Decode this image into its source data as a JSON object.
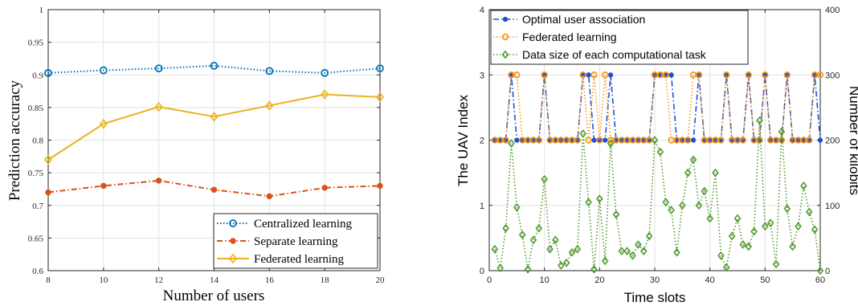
{
  "chart_data": [
    {
      "type": "line",
      "xlabel": "Number of users",
      "ylabel": "Prediction accuracy",
      "xlim": [
        8,
        20
      ],
      "ylim": [
        0.6,
        1
      ],
      "xticks": [
        8,
        10,
        12,
        14,
        16,
        18,
        20
      ],
      "xtick_labels": [
        "8",
        "10",
        "12",
        "14",
        "16",
        "18",
        "20"
      ],
      "yticks": [
        0.6,
        0.65,
        0.7,
        0.75,
        0.8,
        0.85,
        0.9,
        0.95,
        1
      ],
      "ytick_labels": [
        "0.6",
        "0.65",
        "0.7",
        "0.75",
        "0.8",
        "0.85",
        "0.9",
        "0.95",
        "1"
      ],
      "grid": true,
      "legend_position": "bottom-right",
      "x": [
        8,
        10,
        12,
        14,
        16,
        18,
        20
      ],
      "series": [
        {
          "name": "Centralized learning",
          "values": [
            0.903,
            0.907,
            0.91,
            0.914,
            0.906,
            0.903,
            0.91
          ],
          "color": "#0072BD",
          "marker": "circle",
          "dash": "dotted"
        },
        {
          "name": "Separate learning",
          "values": [
            0.72,
            0.73,
            0.738,
            0.724,
            0.714,
            0.727,
            0.73
          ],
          "color": "#D95319",
          "marker": "dot",
          "dash": "dashdot"
        },
        {
          "name": "Federated learning",
          "values": [
            0.77,
            0.825,
            0.851,
            0.836,
            0.853,
            0.87,
            0.866
          ],
          "color": "#EDB120",
          "marker": "diamond",
          "dash": "solid"
        }
      ]
    },
    {
      "type": "line",
      "xlabel": "Time slots",
      "ylabel": "The UAV Index",
      "ylabel_right": "Number of kilobits",
      "xlim": [
        0,
        60
      ],
      "ylim": [
        0,
        4
      ],
      "ylim_right": [
        0,
        400
      ],
      "xticks": [
        0,
        10,
        20,
        30,
        40,
        50,
        60
      ],
      "xtick_labels": [
        "0",
        "10",
        "20",
        "30",
        "40",
        "50",
        "60"
      ],
      "yticks": [
        0,
        1,
        2,
        3,
        4
      ],
      "ytick_labels": [
        "0",
        "1",
        "2",
        "3",
        "4"
      ],
      "yticks_right": [
        0,
        100,
        200,
        300,
        400
      ],
      "ytick_labels_right": [
        "0",
        "100",
        "200",
        "300",
        "400"
      ],
      "grid": true,
      "legend_position": "top-left",
      "x": [
        1,
        2,
        3,
        4,
        5,
        6,
        7,
        8,
        9,
        10,
        11,
        12,
        13,
        14,
        15,
        16,
        17,
        18,
        19,
        20,
        21,
        22,
        23,
        24,
        25,
        26,
        27,
        28,
        29,
        30,
        31,
        32,
        33,
        34,
        35,
        36,
        37,
        38,
        39,
        40,
        41,
        42,
        43,
        44,
        45,
        46,
        47,
        48,
        49,
        50,
        51,
        52,
        53,
        54,
        55,
        56,
        57,
        58,
        59,
        60
      ],
      "series": [
        {
          "name": "Optimal user association",
          "axis": "left",
          "color": "#1F4FD8",
          "marker": "dot",
          "dash": "dashdot",
          "values": [
            2,
            2,
            2,
            3,
            2,
            2,
            2,
            2,
            2,
            3,
            2,
            2,
            2,
            2,
            2,
            2,
            3,
            3,
            2,
            2,
            2,
            3,
            2,
            2,
            2,
            2,
            2,
            2,
            2,
            3,
            3,
            3,
            3,
            2,
            2,
            2,
            2,
            3,
            2,
            2,
            2,
            2,
            3,
            2,
            2,
            2,
            3,
            2,
            2,
            3,
            2,
            2,
            2,
            3,
            2,
            2,
            2,
            2,
            3,
            2
          ]
        },
        {
          "name": "Federated learning",
          "axis": "left",
          "color": "#F59A1B",
          "marker": "circle",
          "dash": "dotted",
          "values": [
            2,
            2,
            2,
            3,
            3,
            2,
            2,
            2,
            2,
            3,
            2,
            2,
            2,
            2,
            2,
            2,
            3,
            2,
            3,
            2,
            3,
            2,
            2,
            2,
            2,
            2,
            2,
            2,
            2,
            3,
            3,
            3,
            2,
            2,
            2,
            2,
            3,
            3,
            2,
            2,
            2,
            2,
            3,
            2,
            2,
            2,
            3,
            2,
            2,
            3,
            2,
            2,
            2,
            3,
            2,
            2,
            2,
            2,
            3,
            3
          ]
        },
        {
          "name": "Data size of each computational task",
          "axis": "right",
          "color": "#4F9B2F",
          "marker": "diamond",
          "dash": "dotted",
          "values": [
            33,
            4,
            65,
            195,
            97,
            55,
            2,
            47,
            65,
            140,
            33,
            47,
            8,
            12,
            28,
            33,
            210,
            105,
            2,
            110,
            15,
            195,
            86,
            30,
            30,
            23,
            40,
            30,
            53,
            200,
            182,
            105,
            93,
            28,
            100,
            150,
            170,
            100,
            122,
            80,
            150,
            23,
            5,
            53,
            80,
            40,
            37,
            60,
            230,
            68,
            73,
            10,
            213,
            95,
            37,
            68,
            130,
            90,
            63,
            0
          ]
        }
      ]
    }
  ]
}
